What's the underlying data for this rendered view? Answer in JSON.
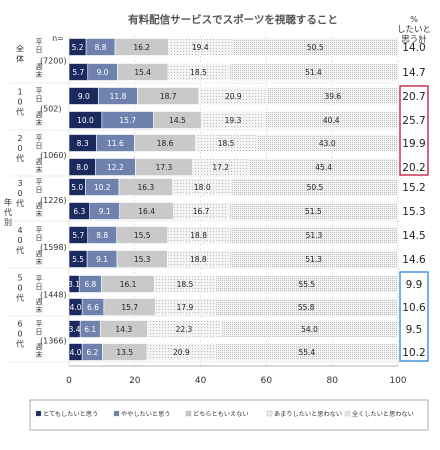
{
  "chart_data": {
    "type": "bar",
    "orientation": "horizontal",
    "stacked": true,
    "title": "有料配信サービスでスポーツを視聴すること",
    "n_label": "n=",
    "total_header": [
      "%",
      "したいと",
      "思う計"
    ],
    "side_label": "年代別",
    "xlim": [
      0,
      100
    ],
    "x_ticks": [
      "0",
      "20",
      "40",
      "60",
      "80",
      "100"
    ],
    "legend_position": "bottom",
    "series": [
      {
        "name": "とてもしたいと思う",
        "color": "#1b2a5e",
        "text_color": "#ffffff"
      },
      {
        "name": "ややしたいと思う",
        "color": "#6f82ad",
        "text_color": "#ffffff"
      },
      {
        "name": "どちらともいえない",
        "color": "#c9c9c9",
        "text_color": "#222222"
      },
      {
        "name": "あまりしたいと思わない",
        "color": "#e4e4e4",
        "text_color": "#222222"
      },
      {
        "name": "全くしたいと思わない",
        "color": "#f1f1f1",
        "text_color": "#222222"
      }
    ],
    "groups": [
      {
        "label": "全体",
        "n": "(7200)",
        "rows": [
          {
            "day": "平日",
            "values": [
              5.2,
              8.8,
              16.2,
              19.4,
              50.5
            ],
            "labels": [
              "5.2",
              "8.8",
              "16.2",
              "19.4",
              "50.5"
            ],
            "total": "14.0"
          },
          {
            "day": "週末",
            "values": [
              5.7,
              9.0,
              15.4,
              18.5,
              51.4
            ],
            "labels": [
              "5.7",
              "9.0",
              "15.4",
              "18.5",
              "51.4"
            ],
            "total": "14.7"
          }
        ]
      },
      {
        "label": "10代",
        "n": "(502)",
        "rows": [
          {
            "day": "平日",
            "values": [
              9.0,
              11.8,
              18.7,
              20.9,
              39.6
            ],
            "labels": [
              "9.0",
              "11.8",
              "18.7",
              "20.9",
              "39.6"
            ],
            "total": "20.7"
          },
          {
            "day": "週末",
            "values": [
              10.0,
              15.7,
              14.5,
              19.3,
              40.4
            ],
            "labels": [
              "10.0",
              "15.7",
              "14.5",
              "19.3",
              "40.4"
            ],
            "total": "25.7"
          }
        ]
      },
      {
        "label": "20代",
        "n": "(1060)",
        "rows": [
          {
            "day": "平日",
            "values": [
              8.3,
              11.6,
              18.6,
              18.5,
              43.0
            ],
            "labels": [
              "8.3",
              "11.6",
              "18.6",
              "18.5",
              "43.0"
            ],
            "total": "19.9"
          },
          {
            "day": "週末",
            "values": [
              8.0,
              12.2,
              17.3,
              17.2,
              45.4
            ],
            "labels": [
              "8.0",
              "12.2",
              "17.3",
              "17.2",
              "45.4"
            ],
            "total": "20.2"
          }
        ]
      },
      {
        "label": "30代",
        "n": "(1226)",
        "rows": [
          {
            "day": "平日",
            "values": [
              5.0,
              10.2,
              16.3,
              18.0,
              50.5
            ],
            "labels": [
              "5.0",
              "10.2",
              "16.3",
              "18.0",
              "50.5"
            ],
            "total": "15.2"
          },
          {
            "day": "週末",
            "values": [
              6.3,
              9.1,
              16.4,
              16.7,
              51.5
            ],
            "labels": [
              "6.3",
              "9.1",
              "16.4",
              "16.7",
              "51.5"
            ],
            "total": "15.3"
          }
        ]
      },
      {
        "label": "40代",
        "n": "(1598)",
        "rows": [
          {
            "day": "平日",
            "values": [
              5.7,
              8.8,
              15.5,
              18.8,
              51.3
            ],
            "labels": [
              "5.7",
              "8.8",
              "15.5",
              "18.8",
              "51.3"
            ],
            "total": "14.5"
          },
          {
            "day": "週末",
            "values": [
              5.5,
              9.1,
              15.3,
              18.8,
              51.3
            ],
            "labels": [
              "5.5",
              "9.1",
              "15.3",
              "18.8",
              "51.3"
            ],
            "total": "14.6"
          }
        ]
      },
      {
        "label": "50代",
        "n": "(1448)",
        "rows": [
          {
            "day": "平日",
            "values": [
              3.1,
              6.8,
              16.1,
              18.5,
              55.5
            ],
            "labels": [
              "3.1",
              "6.8",
              "16.1",
              "18.5",
              "55.5"
            ],
            "total": "9.9"
          },
          {
            "day": "週末",
            "values": [
              4.0,
              6.6,
              15.7,
              17.9,
              55.8
            ],
            "labels": [
              "4.0",
              "6.6",
              "15.7",
              "17.9",
              "55.8"
            ],
            "total": "10.6"
          }
        ]
      },
      {
        "label": "60代",
        "n": "(1366)",
        "rows": [
          {
            "day": "平日",
            "values": [
              3.4,
              6.1,
              14.3,
              22.3,
              54.0
            ],
            "labels": [
              "3.4",
              "6.1",
              "14.3",
              "22.3",
              "54.0"
            ],
            "total": "9.5"
          },
          {
            "day": "週末",
            "values": [
              4.0,
              6.2,
              13.5,
              20.9,
              55.4
            ],
            "labels": [
              "4.0",
              "6.2",
              "13.5",
              "20.9",
              "55.4"
            ],
            "total": "10.2"
          }
        ]
      }
    ],
    "highlight_boxes": [
      {
        "from_group": 1,
        "to_group": 2,
        "color": "#c8264b"
      },
      {
        "from_group": 5,
        "to_group": 6,
        "color": "#3a8fd8"
      }
    ]
  }
}
